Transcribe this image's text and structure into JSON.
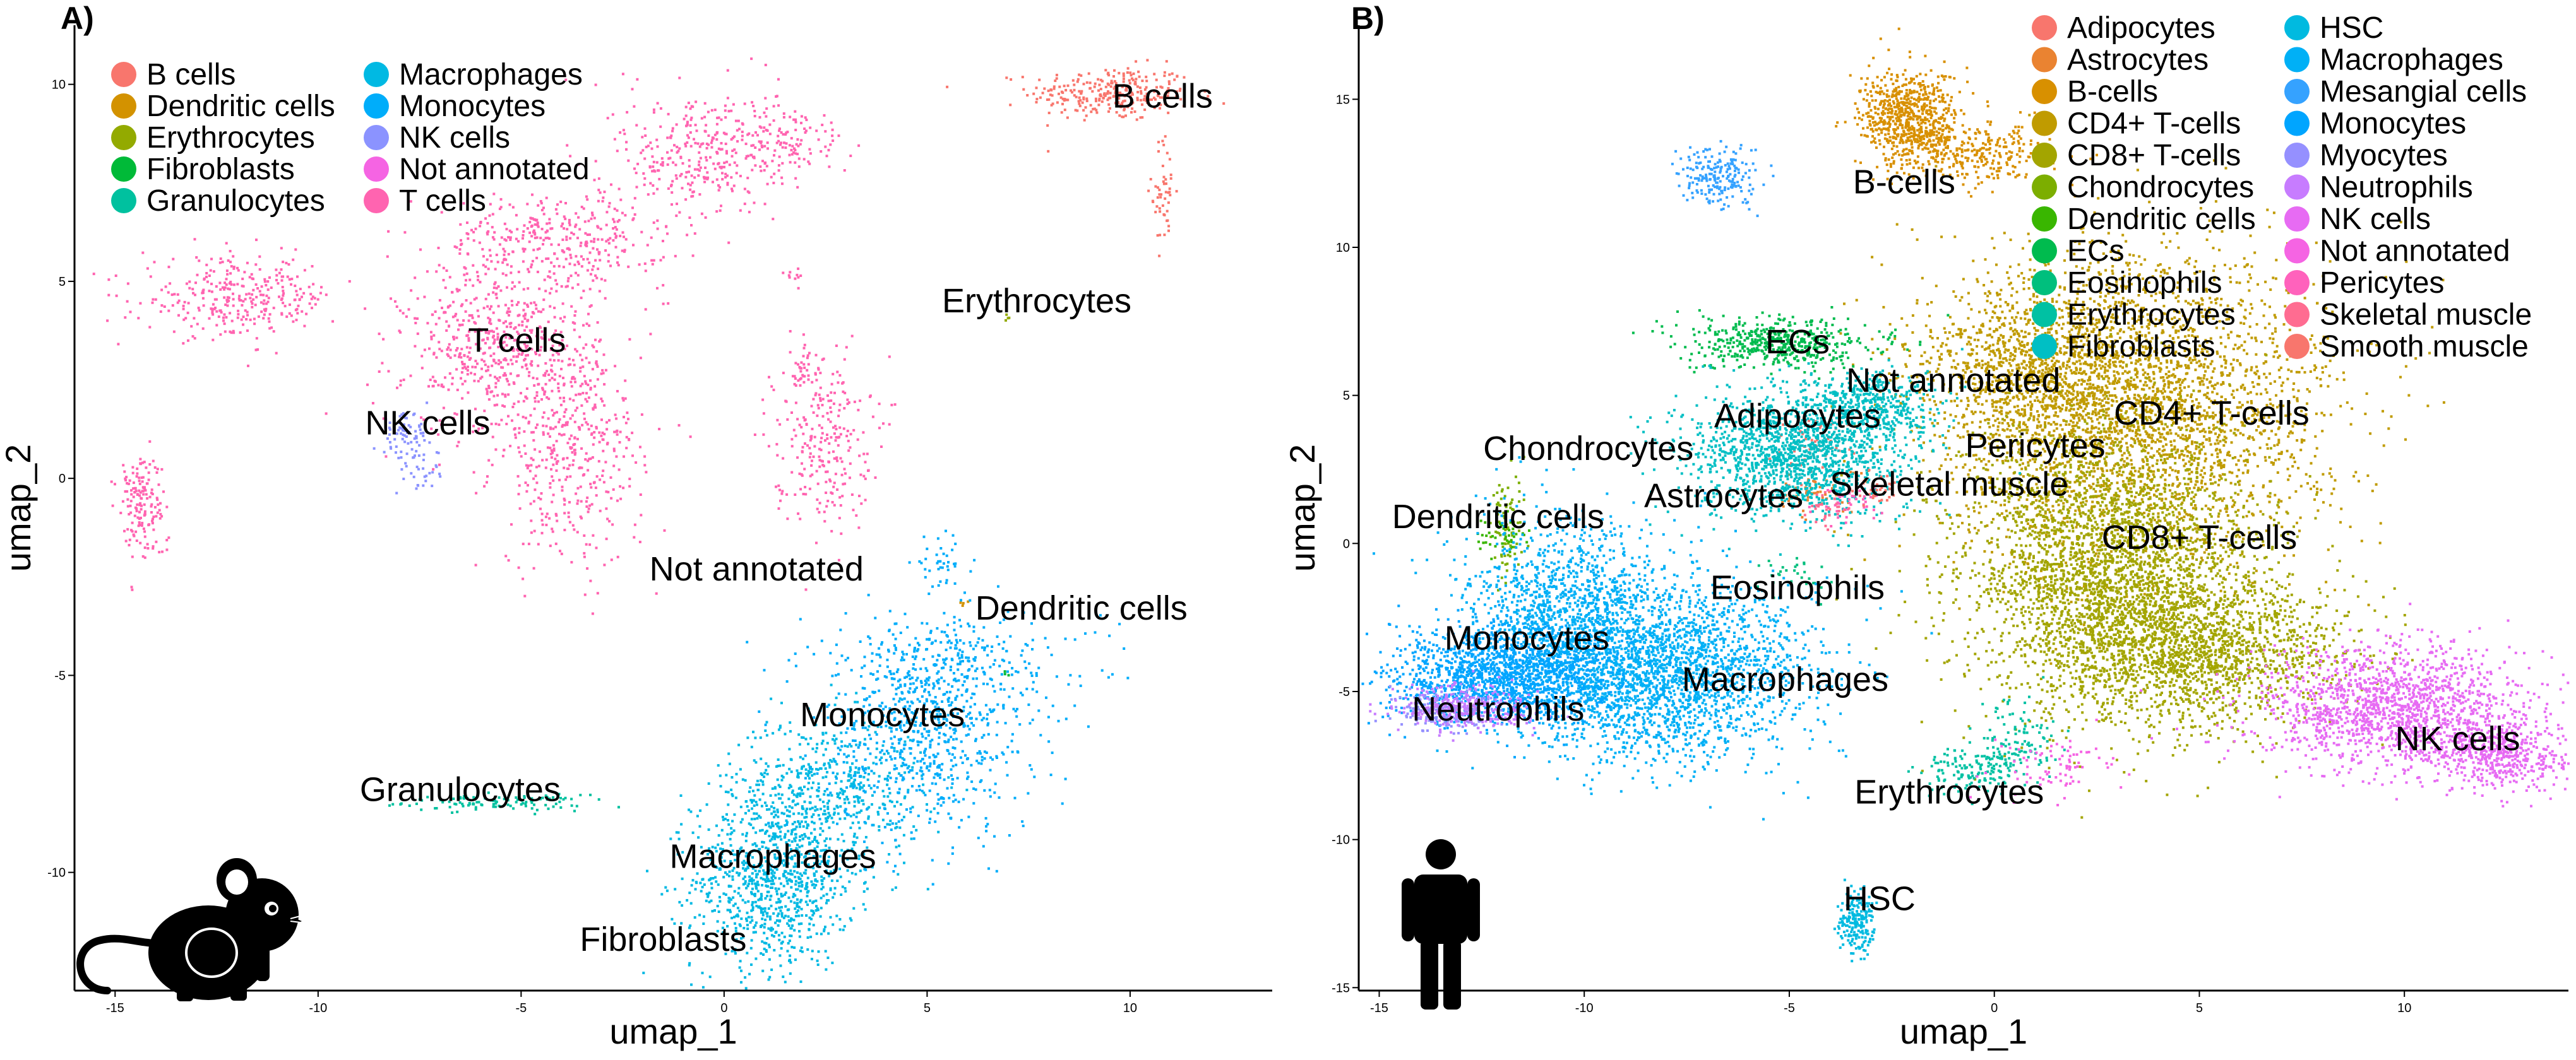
{
  "chart_data": [
    {
      "panel": "A)",
      "type": "scatter",
      "xlabel": "umap_1",
      "ylabel": "umap_2",
      "xlim": [
        -16,
        13.5
      ],
      "ylim": [
        -13,
        11.5
      ],
      "xticks": [
        -15,
        -10,
        -5,
        0,
        5,
        10
      ],
      "yticks": [
        -10,
        -5,
        0,
        5,
        10
      ],
      "grid": false,
      "legend_position": "top-left, inside",
      "icon": "mouse-icon",
      "series": [
        {
          "name": "B cells",
          "color": "#F8766D",
          "clusters": [
            {
              "x": 9.5,
              "y": 9.8,
              "sx": 1.0,
              "sy": 0.35,
              "n": 280
            },
            {
              "x": 10.8,
              "y": 7.3,
              "sx": 0.15,
              "sy": 0.7,
              "n": 50
            }
          ]
        },
        {
          "name": "Dendritic cells",
          "color": "#D39200",
          "clusters": [
            {
              "x": 5.9,
              "y": -3.1,
              "sx": 0.05,
              "sy": 0.05,
              "n": 4
            }
          ]
        },
        {
          "name": "Erythrocytes",
          "color": "#93AA00",
          "clusters": [
            {
              "x": 7.0,
              "y": 4.1,
              "sx": 0.05,
              "sy": 0.05,
              "n": 4
            }
          ]
        },
        {
          "name": "Fibroblasts",
          "color": "#00BA38",
          "clusters": [
            {
              "x": 6.9,
              "y": -4.9,
              "sx": 0.05,
              "sy": 0.05,
              "n": 3
            }
          ]
        },
        {
          "name": "Granulocytes",
          "color": "#00C19F",
          "clusters": [
            {
              "x": -5.7,
              "y": -8.2,
              "sx": 1.1,
              "sy": 0.1,
              "n": 110
            }
          ]
        },
        {
          "name": "Macrophages",
          "color": "#00B9E3",
          "clusters": [
            {
              "x": 1.2,
              "y": -10.2,
              "sx": 1.0,
              "sy": 1.1,
              "n": 900
            },
            {
              "x": 2.5,
              "y": -7.8,
              "sx": 1.2,
              "sy": 0.9,
              "n": 500
            }
          ]
        },
        {
          "name": "Monocytes",
          "color": "#00ADFA",
          "clusters": [
            {
              "x": 5.0,
              "y": -6.5,
              "sx": 1.3,
              "sy": 1.3,
              "n": 700
            },
            {
              "x": 5.5,
              "y": -4.6,
              "sx": 1.8,
              "sy": 0.6,
              "n": 250
            },
            {
              "x": 5.3,
              "y": -2.1,
              "sx": 0.35,
              "sy": 0.3,
              "n": 40
            }
          ]
        },
        {
          "name": "NK cells",
          "color": "#8B93FF",
          "clusters": [
            {
              "x": -7.9,
              "y": 1.1,
              "sx": 0.3,
              "sy": 0.3,
              "n": 70
            },
            {
              "x": -7.5,
              "y": 0.2,
              "sx": 0.3,
              "sy": 0.3,
              "n": 30
            }
          ]
        },
        {
          "name": "Not annotated",
          "color": "#F564E3",
          "clusters": []
        },
        {
          "name": "T cells",
          "color": "#FF64B0",
          "clusters": [
            {
              "x": -12.0,
              "y": 4.6,
              "sx": 1.2,
              "sy": 0.5,
              "n": 320
            },
            {
              "x": -5.5,
              "y": 3.3,
              "sx": 1.2,
              "sy": 1.1,
              "n": 600
            },
            {
              "x": -3.8,
              "y": 0.6,
              "sx": 0.9,
              "sy": 1.4,
              "n": 400
            },
            {
              "x": -4.2,
              "y": 6.1,
              "sx": 1.4,
              "sy": 0.6,
              "n": 350
            },
            {
              "x": -0.7,
              "y": 8.2,
              "sx": 1.0,
              "sy": 0.9,
              "n": 300
            },
            {
              "x": 1.3,
              "y": 8.6,
              "sx": 0.9,
              "sy": 0.5,
              "n": 150
            },
            {
              "x": 2.4,
              "y": 1.1,
              "sx": 0.6,
              "sy": 1.1,
              "n": 260
            },
            {
              "x": 1.9,
              "y": 2.8,
              "sx": 0.15,
              "sy": 0.3,
              "n": 30
            },
            {
              "x": -14.4,
              "y": -0.6,
              "sx": 0.3,
              "sy": 0.7,
              "n": 160
            },
            {
              "x": 1.7,
              "y": 5.2,
              "sx": 0.1,
              "sy": 0.1,
              "n": 10
            }
          ]
        }
      ],
      "annotations": [
        {
          "text": "B cells",
          "x": 10.8,
          "y": 9.7
        },
        {
          "text": "Erythrocytes",
          "x": 7.7,
          "y": 4.5
        },
        {
          "text": "T cells",
          "x": -5.1,
          "y": 3.5
        },
        {
          "text": "NK cells",
          "x": -7.3,
          "y": 1.4
        },
        {
          "text": "Not annotated",
          "x": 0.8,
          "y": -2.3
        },
        {
          "text": "Dendritic cells",
          "x": 8.8,
          "y": -3.3
        },
        {
          "text": "Monocytes",
          "x": 3.9,
          "y": -6.0
        },
        {
          "text": "Granulocytes",
          "x": -6.5,
          "y": -7.9
        },
        {
          "text": "Macrophages",
          "x": 1.2,
          "y": -9.6
        },
        {
          "text": "Fibroblasts",
          "x": -1.5,
          "y": -11.7
        }
      ]
    },
    {
      "panel": "B)",
      "type": "scatter",
      "xlabel": "umap_1",
      "ylabel": "umap_2",
      "xlim": [
        -15.5,
        14
      ],
      "ylim": [
        -15.1,
        17.5
      ],
      "xticks": [
        -15,
        -10,
        -5,
        0,
        5,
        10
      ],
      "yticks": [
        -15,
        -10,
        -5,
        0,
        5,
        10,
        15
      ],
      "grid": false,
      "legend_position": "top-right, inside",
      "icon": "human-icon",
      "series": [
        {
          "name": "Adipocytes",
          "color": "#F8766D",
          "clusters": [
            {
              "x": -4.5,
              "y": 3.4,
              "sx": 0.5,
              "sy": 0.5,
              "n": 60
            }
          ]
        },
        {
          "name": "Astrocytes",
          "color": "#EA8331",
          "clusters": [
            {
              "x": -4.4,
              "y": 1.8,
              "sx": 0.6,
              "sy": 0.4,
              "n": 60
            }
          ]
        },
        {
          "name": "B-cells",
          "color": "#D89000",
          "clusters": [
            {
              "x": -2.1,
              "y": 14.4,
              "sx": 0.6,
              "sy": 0.8,
              "n": 700
            },
            {
              "x": -0.5,
              "y": 13.2,
              "sx": 0.9,
              "sy": 0.5,
              "n": 300
            }
          ]
        },
        {
          "name": "CD4+ T-cells",
          "color": "#C09B00",
          "clusters": [
            {
              "x": 3.5,
              "y": 4.5,
              "sx": 2.3,
              "sy": 2.6,
              "n": 3000
            },
            {
              "x": 1.0,
              "y": 6.0,
              "sx": 1.5,
              "sy": 1.5,
              "n": 1000
            }
          ]
        },
        {
          "name": "CD8+ T-cells",
          "color": "#A3A500",
          "clusters": [
            {
              "x": 2.8,
              "y": -1.0,
              "sx": 1.8,
              "sy": 2.4,
              "n": 3000
            },
            {
              "x": 5.0,
              "y": -3.5,
              "sx": 1.8,
              "sy": 1.2,
              "n": 1500
            }
          ]
        },
        {
          "name": "Chondrocytes",
          "color": "#7CAE00",
          "clusters": [
            {
              "x": -11.9,
              "y": 0.9,
              "sx": 0.2,
              "sy": 1.0,
              "n": 80
            }
          ]
        },
        {
          "name": "Dendritic cells",
          "color": "#39B600",
          "clusters": [
            {
              "x": -12.0,
              "y": 0.3,
              "sx": 0.3,
              "sy": 0.3,
              "n": 40
            }
          ]
        },
        {
          "name": "ECs",
          "color": "#00BB4E",
          "clusters": [
            {
              "x": -5.2,
              "y": 6.8,
              "sx": 1.2,
              "sy": 0.4,
              "n": 500
            }
          ]
        },
        {
          "name": "Eosinophils",
          "color": "#00BF7D",
          "clusters": [
            {
              "x": -5.0,
              "y": -1.0,
              "sx": 0.4,
              "sy": 0.4,
              "n": 30
            }
          ]
        },
        {
          "name": "Erythrocytes",
          "color": "#00C1A3",
          "clusters": [
            {
              "x": -0.6,
              "y": -7.6,
              "sx": 0.6,
              "sy": 0.4,
              "n": 150
            },
            {
              "x": 0.5,
              "y": -6.5,
              "sx": 0.5,
              "sy": 0.8,
              "n": 100
            }
          ]
        },
        {
          "name": "Fibroblasts",
          "color": "#00BFC4",
          "clusters": [
            {
              "x": -4.9,
              "y": 3.1,
              "sx": 1.3,
              "sy": 1.1,
              "n": 1500
            },
            {
              "x": -2.9,
              "y": 4.6,
              "sx": 0.8,
              "sy": 0.6,
              "n": 400
            }
          ]
        },
        {
          "name": "HSC",
          "color": "#00BAE0",
          "clusters": [
            {
              "x": -3.4,
              "y": -12.8,
              "sx": 0.2,
              "sy": 0.5,
              "n": 200
            }
          ]
        },
        {
          "name": "Macrophages",
          "color": "#00B0F6",
          "clusters": [
            {
              "x": -8.2,
              "y": -4.3,
              "sx": 1.8,
              "sy": 1.5,
              "n": 2500
            },
            {
              "x": -10.5,
              "y": -2.0,
              "sx": 1.2,
              "sy": 1.5,
              "n": 1000
            }
          ]
        },
        {
          "name": "Mesangial cells",
          "color": "#35A2FF",
          "clusters": [
            {
              "x": -6.7,
              "y": 12.5,
              "sx": 0.5,
              "sy": 0.5,
              "n": 200
            }
          ]
        },
        {
          "name": "Monocytes",
          "color": "#00A5FF",
          "clusters": [
            {
              "x": -12.0,
              "y": -4.4,
              "sx": 1.4,
              "sy": 0.8,
              "n": 1500
            }
          ]
        },
        {
          "name": "Myocytes",
          "color": "#9590FF",
          "clusters": [
            {
              "x": -13.4,
              "y": -5.6,
              "sx": 0.6,
              "sy": 0.4,
              "n": 200
            }
          ]
        },
        {
          "name": "Neutrophils",
          "color": "#C77CFF",
          "clusters": [
            {
              "x": -12.9,
              "y": -5.5,
              "sx": 0.8,
              "sy": 0.4,
              "n": 300
            }
          ]
        },
        {
          "name": "NK cells",
          "color": "#E76BF3",
          "clusters": [
            {
              "x": 9.8,
              "y": -5.6,
              "sx": 1.6,
              "sy": 1.0,
              "n": 1500
            },
            {
              "x": 12.3,
              "y": -7.1,
              "sx": 0.9,
              "sy": 0.6,
              "n": 500
            }
          ]
        },
        {
          "name": "Not annotated",
          "color": "#F564E3",
          "clusters": [
            {
              "x": 1.5,
              "y": -7.5,
              "sx": 0.8,
              "sy": 0.5,
              "n": 80
            }
          ]
        },
        {
          "name": "Pericytes",
          "color": "#FF62BC",
          "clusters": [
            {
              "x": -3.6,
              "y": 1.4,
              "sx": 0.4,
              "sy": 0.3,
              "n": 40
            }
          ]
        },
        {
          "name": "Skeletal muscle",
          "color": "#FF6C91",
          "clusters": [
            {
              "x": -4.1,
              "y": 1.2,
              "sx": 0.3,
              "sy": 0.3,
              "n": 30
            }
          ]
        },
        {
          "name": "Smooth muscle",
          "color": "#F8766D",
          "clusters": [
            {
              "x": -2.9,
              "y": 1.9,
              "sx": 0.3,
              "sy": 0.3,
              "n": 30
            }
          ]
        }
      ],
      "annotations": [
        {
          "text": "B-cells",
          "x": -2.2,
          "y": 12.2
        },
        {
          "text": "ECs",
          "x": -4.8,
          "y": 6.8
        },
        {
          "text": "Not annotated",
          "x": -1.0,
          "y": 5.5
        },
        {
          "text": "Adipocytes",
          "x": -4.8,
          "y": 4.3
        },
        {
          "text": "CD4+ T-cells",
          "x": 5.3,
          "y": 4.4
        },
        {
          "text": "Chondrocytes",
          "x": -9.9,
          "y": 3.2
        },
        {
          "text": "Pericytes",
          "x": 1.0,
          "y": 3.3
        },
        {
          "text": "Skeletal muscle",
          "x": -1.1,
          "y": 2.0
        },
        {
          "text": "Astrocytes",
          "x": -6.6,
          "y": 1.6
        },
        {
          "text": "Dendritic cells",
          "x": -12.1,
          "y": 0.9
        },
        {
          "text": "CD8+ T-cells",
          "x": 5.0,
          "y": 0.2
        },
        {
          "text": "Eosinophils",
          "x": -4.8,
          "y": -1.5
        },
        {
          "text": "Monocytes",
          "x": -11.4,
          "y": -3.2
        },
        {
          "text": "Macrophages",
          "x": -5.1,
          "y": -4.6
        },
        {
          "text": "Neutrophils",
          "x": -12.1,
          "y": -5.6
        },
        {
          "text": "NK cells",
          "x": 11.3,
          "y": -6.6
        },
        {
          "text": "Erythrocytes",
          "x": -1.1,
          "y": -8.4
        },
        {
          "text": "HSC",
          "x": -2.8,
          "y": -12.0
        }
      ]
    }
  ]
}
